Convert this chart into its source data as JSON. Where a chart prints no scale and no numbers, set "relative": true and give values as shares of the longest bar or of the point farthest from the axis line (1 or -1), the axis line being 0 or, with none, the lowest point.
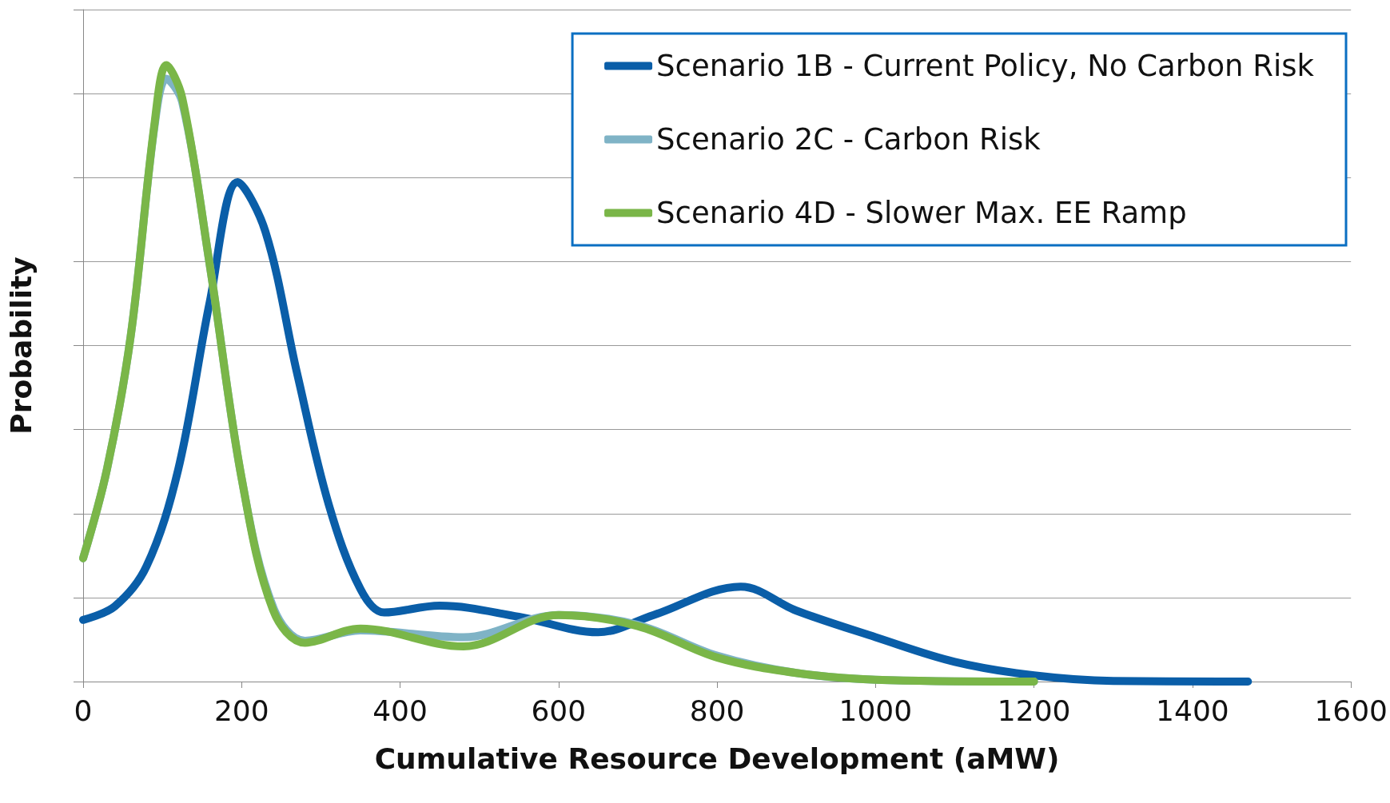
{
  "chart_data": {
    "type": "line",
    "xlabel": "Cumulative Resource Development (aMW)",
    "ylabel": "Probability",
    "relative": true,
    "xlim": [
      0,
      1600
    ],
    "xticks": [
      0,
      200,
      400,
      600,
      800,
      1000,
      1200,
      1400,
      1600
    ],
    "grid": "y",
    "legend": "top right",
    "marker": "none",
    "line_style": "solid",
    "series": [
      {
        "name": "Scenario 1B - Current Policy, No Carbon Risk",
        "color": "#0a5ea8",
        "x": [
          0,
          40,
          80,
          120,
          160,
          195,
          230,
          270,
          310,
          350,
          380,
          450,
          550,
          650,
          720,
          830,
          900,
          1000,
          1100,
          1200,
          1300,
          1470
        ],
        "values": [
          0.1,
          0.122,
          0.187,
          0.344,
          0.617,
          0.81,
          0.73,
          0.5,
          0.287,
          0.15,
          0.112,
          0.123,
          0.105,
          0.08,
          0.108,
          0.154,
          0.115,
          0.072,
          0.032,
          0.01,
          0.001,
          0
        ]
      },
      {
        "name": "Scenario 2C - Carbon Risk",
        "color": "#7fb3c6",
        "x": [
          0,
          30,
          60,
          90,
          105,
          125,
          160,
          200,
          240,
          280,
          350,
          480,
          600,
          700,
          800,
          900,
          1000,
          1200
        ],
        "values": [
          0.2,
          0.344,
          0.56,
          0.9,
          0.978,
          0.94,
          0.674,
          0.33,
          0.12,
          0.066,
          0.083,
          0.072,
          0.108,
          0.092,
          0.042,
          0.014,
          0.003,
          0
        ]
      },
      {
        "name": "Scenario 4D - Slower Max. EE Ramp",
        "color": "#7ab648",
        "x": [
          0,
          30,
          60,
          90,
          105,
          125,
          160,
          200,
          240,
          280,
          350,
          480,
          600,
          700,
          800,
          900,
          1000,
          1200
        ],
        "values": [
          0.2,
          0.344,
          0.56,
          0.904,
          1,
          0.947,
          0.674,
          0.33,
          0.115,
          0.063,
          0.086,
          0.057,
          0.108,
          0.09,
          0.039,
          0.014,
          0.003,
          0
        ]
      }
    ]
  }
}
